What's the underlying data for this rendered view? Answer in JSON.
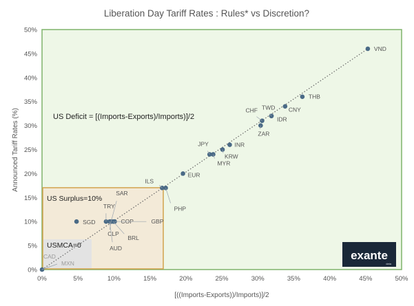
{
  "chart_data": {
    "type": "scatter",
    "title": "Liberation Day Tariff Rates : Rules* vs Discretion?",
    "xlabel": "[((Imports-Exports))/Imports)]/2",
    "ylabel": "Announced Tariff Rates (%)",
    "xlim": [
      0,
      50
    ],
    "ylim": [
      0,
      50
    ],
    "x_ticks": [
      "0%",
      "5%",
      "10%",
      "15%",
      "20%",
      "25%",
      "30%",
      "35%",
      "40%",
      "45%",
      "50%"
    ],
    "y_ticks": [
      "0%",
      "5%",
      "10%",
      "15%",
      "20%",
      "25%",
      "30%",
      "35%",
      "40%",
      "45%",
      "50%"
    ],
    "grid": false,
    "trendline": {
      "style": "dotted",
      "from": [
        0,
        0
      ],
      "to": [
        45.3,
        46
      ]
    },
    "points": [
      {
        "label": "VND",
        "x": 45.3,
        "y": 46
      },
      {
        "label": "THB",
        "x": 36.2,
        "y": 36
      },
      {
        "label": "CNY",
        "x": 33.8,
        "y": 34
      },
      {
        "label": "TWD",
        "x": 31.9,
        "y": 32
      },
      {
        "label": "IDR",
        "x": 31.9,
        "y": 32
      },
      {
        "label": "CHF",
        "x": 30.6,
        "y": 31
      },
      {
        "label": "ZAR",
        "x": 30.4,
        "y": 30
      },
      {
        "label": "JPY",
        "x": 23.3,
        "y": 24
      },
      {
        "label": "MYR",
        "x": 23.8,
        "y": 24
      },
      {
        "label": "INR",
        "x": 26.1,
        "y": 26
      },
      {
        "label": "KRW",
        "x": 25.1,
        "y": 25
      },
      {
        "label": "EUR",
        "x": 19.6,
        "y": 20
      },
      {
        "label": "ILS",
        "x": 16.7,
        "y": 17
      },
      {
        "label": "PHP",
        "x": 17.2,
        "y": 17
      },
      {
        "label": "SGD",
        "x": 4.8,
        "y": 10
      },
      {
        "label": "SAR",
        "x": 9.6,
        "y": 10
      },
      {
        "label": "TRY",
        "x": 8.9,
        "y": 10
      },
      {
        "label": "COP",
        "x": 10.1,
        "y": 10
      },
      {
        "label": "GBP",
        "x": 10.1,
        "y": 10
      },
      {
        "label": "CLP",
        "x": 9.6,
        "y": 10
      },
      {
        "label": "BRL",
        "x": 9.9,
        "y": 10
      },
      {
        "label": "AUD",
        "x": 9.4,
        "y": 10
      },
      {
        "label": "CAD",
        "x": 0,
        "y": 0
      },
      {
        "label": "MXN",
        "x": 0,
        "y": 0
      }
    ],
    "annotations": {
      "deficit": "US Deficit = [(Imports-Exports)/Imports)]/2",
      "surplus": "US Surplus=10%",
      "usmca": "USMCA=0"
    },
    "colors": {
      "plot_bg": "#eef7e7",
      "plot_border": "#7fb46a",
      "surplus_bg": "#f3ead8",
      "surplus_border": "#d1a24c",
      "usmca_bg": "#e3e3e3",
      "point": "#4a6a86",
      "trendline": "#666666"
    }
  },
  "brand": {
    "logo": "exante",
    "sub": "data"
  }
}
